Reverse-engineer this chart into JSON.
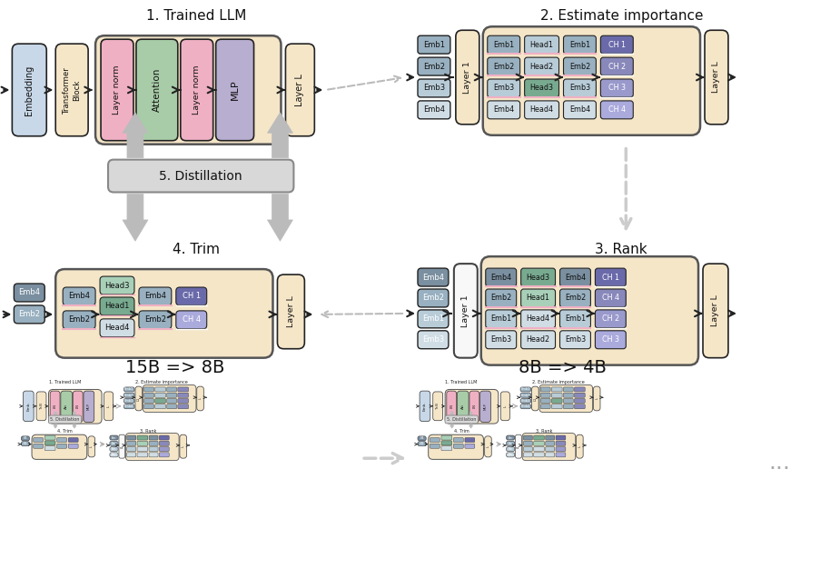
{
  "bg_color": "#ffffff",
  "colors": {
    "embedding": "#c8d8e8",
    "transformer_block": "#f5e6c8",
    "layer_norm": "#f0b0c4",
    "attention": "#a8cca8",
    "mlp": "#b8aed0",
    "layer_l": "#f5e6c8",
    "emb_gray_dark": "#7a8fa0",
    "emb_gray_mid": "#98b0c0",
    "emb_gray_light": "#b8ccd8",
    "emb_gray_pale": "#d0dde5",
    "emb_pink": "#f0b0c4",
    "head_green_dark": "#78aa90",
    "head_green_light": "#a8d0b8",
    "ch_blue_dark": "#6a6aaa",
    "ch_blue_mid": "#8888bb",
    "ch_blue_light": "#9999cc",
    "ch_blue_pale": "#aaaadd",
    "group_bg": "#f5e6c8",
    "distill_bg": "#d8d8d8",
    "white": "#ffffff",
    "layer1_white": "#f8f8f8"
  },
  "sections": {
    "top_left_title": "1. Trained LLM",
    "top_right_title": "2. Estimate importance",
    "bottom_left_title": "4. Trim",
    "bottom_right_title": "3. Rank",
    "distill_title": "5. Distillation",
    "scale1_title": "15B => 8B",
    "scale2_title": "8B => 4B",
    "dots": "..."
  }
}
